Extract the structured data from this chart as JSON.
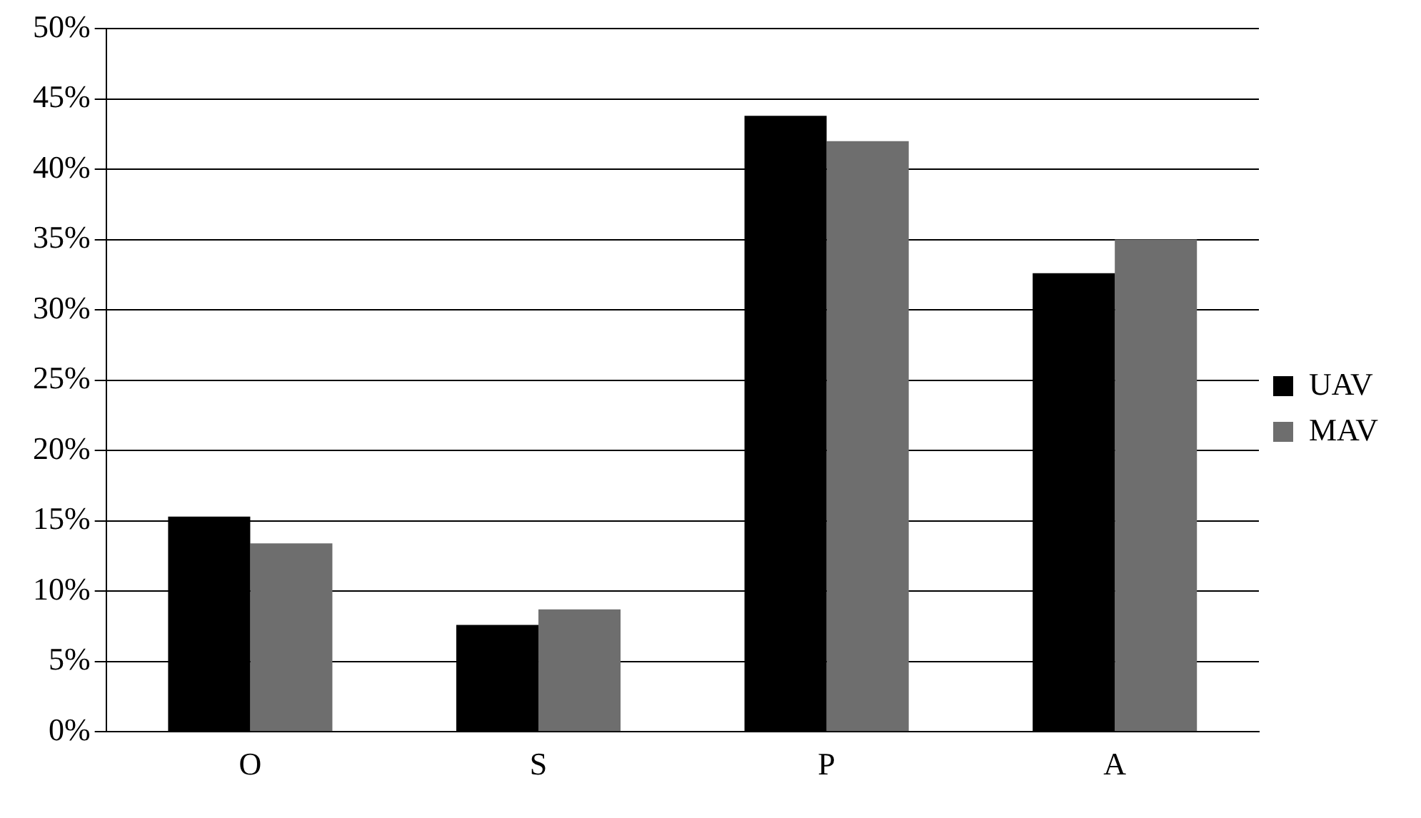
{
  "chart_data": {
    "type": "bar",
    "categories": [
      "O",
      "S",
      "P",
      "A"
    ],
    "series": [
      {
        "name": "UAV",
        "color": "#000000",
        "values": [
          15.3,
          7.6,
          43.8,
          32.6
        ]
      },
      {
        "name": "MAV",
        "color": "#6e6e6e",
        "values": [
          13.4,
          8.7,
          42.0,
          35.0
        ]
      }
    ],
    "ylim": [
      0,
      50
    ],
    "yticks": [
      {
        "value": 0,
        "label": "0%"
      },
      {
        "value": 5,
        "label": "5%"
      },
      {
        "value": 10,
        "label": "10%"
      },
      {
        "value": 15,
        "label": "15%"
      },
      {
        "value": 20,
        "label": "20%"
      },
      {
        "value": 25,
        "label": "25%"
      },
      {
        "value": 30,
        "label": "30%"
      },
      {
        "value": 35,
        "label": "35%"
      },
      {
        "value": 40,
        "label": "40%"
      },
      {
        "value": 45,
        "label": "45%"
      },
      {
        "value": 50,
        "label": "50%"
      }
    ],
    "grid": "y",
    "legend": "right"
  }
}
